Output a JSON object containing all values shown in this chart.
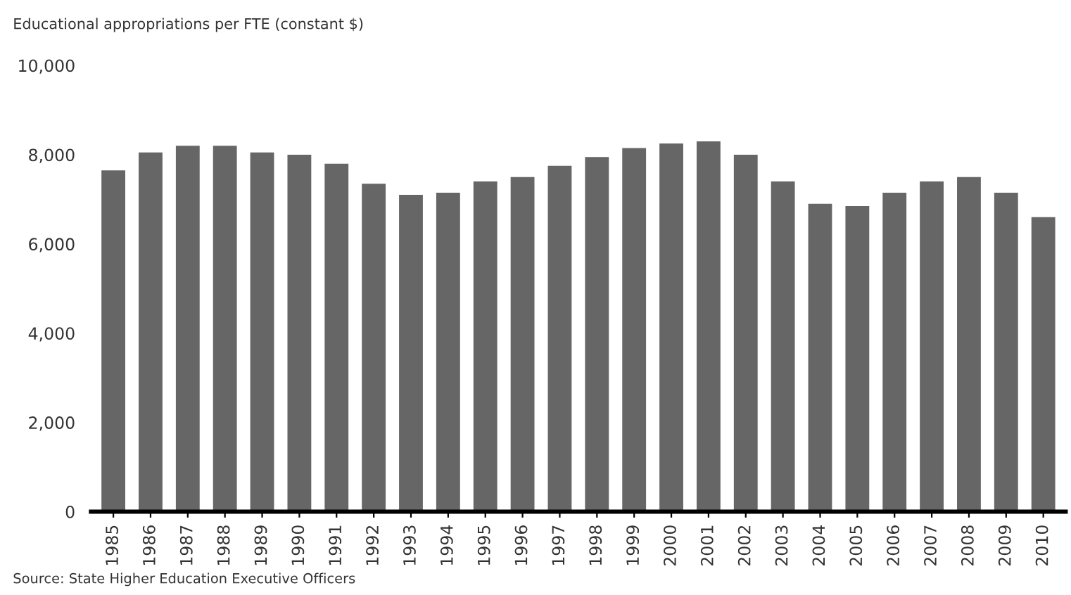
{
  "chart_data": {
    "type": "bar",
    "title": "Educational appropriations per FTE (constant $)",
    "categories": [
      "1985",
      "1986",
      "1987",
      "1988",
      "1989",
      "1990",
      "1991",
      "1992",
      "1993",
      "1994",
      "1995",
      "1996",
      "1997",
      "1998",
      "1999",
      "2000",
      "2001",
      "2002",
      "2003",
      "2004",
      "2005",
      "2006",
      "2007",
      "2008",
      "2009",
      "2010"
    ],
    "values": [
      7650,
      8050,
      8200,
      8200,
      8050,
      8000,
      7800,
      7350,
      7100,
      7150,
      7400,
      7500,
      7750,
      7950,
      8150,
      8250,
      8300,
      8000,
      7400,
      6900,
      6850,
      7150,
      7400,
      7500,
      7150,
      6600
    ],
    "color": "#666666",
    "ylim": [
      0,
      10000
    ],
    "yticks": [
      {
        "value": 0,
        "label": "0"
      },
      {
        "value": 2000,
        "label": "2,000"
      },
      {
        "value": 4000,
        "label": "4,000"
      },
      {
        "value": 6000,
        "label": "6,000"
      },
      {
        "value": 8000,
        "label": "8,000"
      },
      {
        "value": 10000,
        "label": "10,000"
      }
    ],
    "grid": false,
    "legend": false,
    "annotations": [
      "Source: State Higher Education Executive Officers"
    ]
  }
}
